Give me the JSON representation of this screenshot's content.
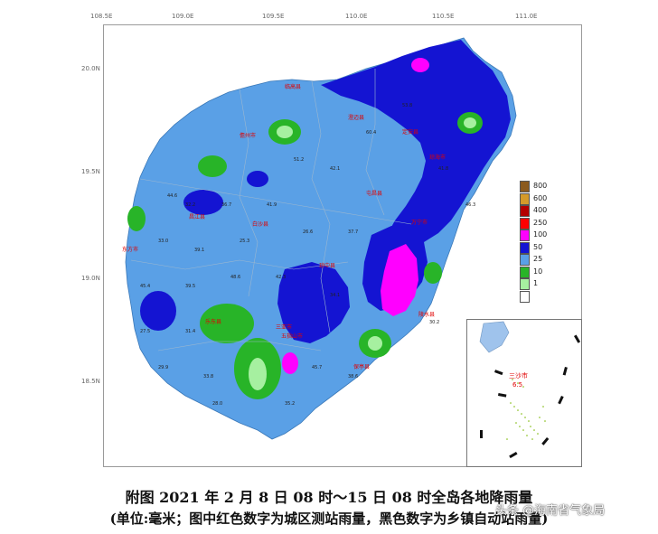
{
  "map": {
    "lon_ticks": [
      "108.5E",
      "109.0E",
      "109.5E",
      "110.0E",
      "110.5E",
      "111.0E"
    ],
    "lat_ticks": [
      "20.0N",
      "19.5N",
      "19.0N",
      "18.5N"
    ]
  },
  "legend": {
    "items": [
      {
        "label": "800",
        "color": "#8b5a1e"
      },
      {
        "label": "600",
        "color": "#d49a2a"
      },
      {
        "label": "400",
        "color": "#b40000"
      },
      {
        "label": "250",
        "color": "#ff0000"
      },
      {
        "label": "100",
        "color": "#ff00ff"
      },
      {
        "label": "50",
        "color": "#1414d2"
      },
      {
        "label": "25",
        "color": "#5aa0e6"
      },
      {
        "label": "10",
        "color": "#28b428"
      },
      {
        "label": "1",
        "color": "#a6f0a0"
      },
      {
        "label": "",
        "color": "#ffffff"
      }
    ]
  },
  "cities": [
    {
      "name": "临高县"
    },
    {
      "name": "澄迈县"
    },
    {
      "name": "定安县"
    },
    {
      "name": "儋州市"
    },
    {
      "name": "昌江县"
    },
    {
      "name": "白沙县"
    },
    {
      "name": "琼中县"
    },
    {
      "name": "东方市"
    },
    {
      "name": "乐东县"
    },
    {
      "name": "保亭县"
    },
    {
      "name": "陵水县"
    },
    {
      "name": "三亚市"
    },
    {
      "name": "五指山市"
    },
    {
      "name": "屯昌县"
    },
    {
      "name": "万宁市"
    },
    {
      "name": "琼海市"
    }
  ],
  "station_values": [
    "44.6",
    "32.2",
    "36.7",
    "41.9",
    "51.2",
    "42.1",
    "60.4",
    "53.8",
    "33.0",
    "39.1",
    "25.3",
    "26.6",
    "37.7",
    "45.4",
    "39.5",
    "48.6",
    "42.3",
    "34.1",
    "27.5",
    "31.4",
    "29.9",
    "33.8",
    "45.7",
    "38.6",
    "28.0",
    "35.2",
    "41.8",
    "46.3",
    "30.2"
  ],
  "inset": {
    "city_name": "三沙市",
    "city_value": "6.5"
  },
  "caption": {
    "line1": "附图 2021 年 2 月 8 日 08 时～15 日 08 时全岛各地降雨量",
    "line2": "(单位:毫米；图中红色数字为城区测站雨量，黑色数字为乡镇自动站雨量)"
  },
  "watermark": "头条 @海南省气象局"
}
